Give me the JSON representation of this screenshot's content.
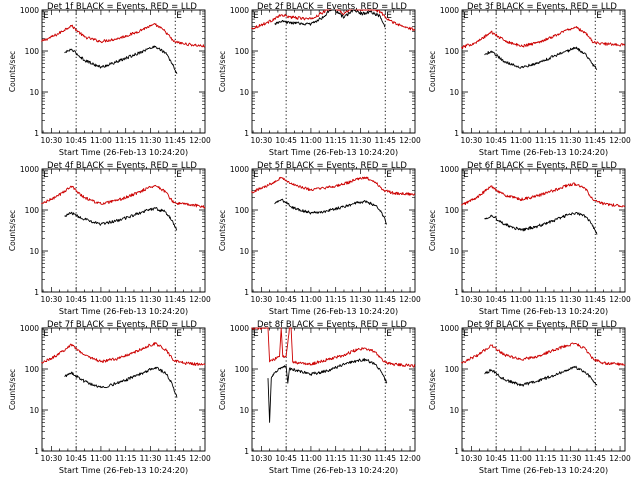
{
  "colors": {
    "events": "#000000",
    "lld": "#cc0000",
    "background": "#ffffff",
    "axes": "#000000"
  },
  "chart_data": [
    {
      "type": "line",
      "title": "Det 1f BLACK = Events, RED = LLD",
      "xlabel": "Start Time (26-Feb-13 10:24:20)",
      "ylabel": "Counts/sec",
      "x_ticks": [
        "10:30",
        "10:45",
        "11:00",
        "11:15",
        "11:30",
        "11:45",
        "12:00"
      ],
      "y_ticks": [
        "1",
        "10",
        "100",
        "1000"
      ],
      "y_scale": "log",
      "ylim": [
        1,
        1000
      ],
      "xlim": [
        "10:24:20",
        "12:03"
      ],
      "markers": [
        {
          "label": "E",
          "x": "10:45"
        },
        {
          "label": "E",
          "x": "11:45"
        }
      ],
      "series": [
        {
          "name": "LLD",
          "color": "#cc0000",
          "x": [
            "10:24",
            "10:34",
            "10:42",
            "10:50",
            "11:00",
            "11:10",
            "11:20",
            "11:28",
            "11:33",
            "11:39",
            "11:44",
            "11:50",
            "12:03"
          ],
          "values": [
            170,
            260,
            420,
            220,
            170,
            200,
            270,
            380,
            440,
            300,
            170,
            150,
            130
          ]
        },
        {
          "name": "Events",
          "color": "#000000",
          "x": [
            "10:38",
            "10:42",
            "10:50",
            "11:00",
            "11:10",
            "11:20",
            "11:28",
            "11:33",
            "11:39",
            "11:43",
            "11:46"
          ],
          "values": [
            90,
            110,
            60,
            40,
            55,
            80,
            110,
            130,
            90,
            50,
            28
          ]
        }
      ]
    },
    {
      "type": "line",
      "title": "Det 2f BLACK = Events, RED = LLD",
      "xlabel": "Start Time (26-Feb-13 10:24:20)",
      "ylabel": "Counts/sec",
      "x_ticks": [
        "10:30",
        "10:45",
        "11:00",
        "11:15",
        "11:30",
        "11:45",
        "12:00"
      ],
      "y_ticks": [
        "1",
        "10",
        "100",
        "1000"
      ],
      "y_scale": "log",
      "ylim": [
        1,
        1000
      ],
      "xlim": [
        "10:24:20",
        "12:03"
      ],
      "markers": [
        {
          "label": "E",
          "x": "10:45"
        },
        {
          "label": "E",
          "x": "11:45"
        }
      ],
      "series": [
        {
          "name": "LLD",
          "color": "#cc0000",
          "x": [
            "10:24",
            "10:34",
            "10:42",
            "10:50",
            "11:00",
            "11:08",
            "11:13",
            "11:20",
            "11:26",
            "11:30",
            "11:36",
            "11:42",
            "11:46",
            "11:55",
            "12:03"
          ],
          "values": [
            350,
            500,
            750,
            650,
            600,
            900,
            1400,
            800,
            1300,
            1000,
            1150,
            900,
            600,
            400,
            330
          ]
        },
        {
          "name": "Events",
          "color": "#000000",
          "x": [
            "10:38",
            "10:42",
            "10:50",
            "11:00",
            "11:08",
            "11:13",
            "11:20",
            "11:26",
            "11:30",
            "11:36",
            "11:42",
            "11:45"
          ],
          "values": [
            450,
            520,
            480,
            450,
            700,
            1100,
            650,
            1050,
            800,
            900,
            700,
            380
          ]
        }
      ]
    },
    {
      "type": "line",
      "title": "Det 3f BLACK = Events, RED = LLD",
      "xlabel": "Start Time (26-Feb-13 10:24:20)",
      "ylabel": "Counts/sec",
      "x_ticks": [
        "10:30",
        "10:45",
        "11:00",
        "11:15",
        "11:30",
        "11:45",
        "12:00"
      ],
      "y_ticks": [
        "1",
        "10",
        "100",
        "1000"
      ],
      "y_scale": "log",
      "ylim": [
        1,
        1000
      ],
      "xlim": [
        "10:24:20",
        "12:03"
      ],
      "markers": [
        {
          "label": "E",
          "x": "10:45"
        },
        {
          "label": "E",
          "x": "11:45"
        }
      ],
      "series": [
        {
          "name": "LLD",
          "color": "#cc0000",
          "x": [
            "10:24",
            "10:34",
            "10:42",
            "10:50",
            "11:00",
            "11:10",
            "11:20",
            "11:28",
            "11:33",
            "11:39",
            "11:44",
            "11:50",
            "12:03"
          ],
          "values": [
            120,
            170,
            290,
            180,
            130,
            160,
            230,
            330,
            380,
            280,
            160,
            150,
            140
          ]
        },
        {
          "name": "Events",
          "color": "#000000",
          "x": [
            "10:38",
            "10:42",
            "10:50",
            "11:00",
            "11:10",
            "11:20",
            "11:28",
            "11:33",
            "11:39",
            "11:43",
            "11:46"
          ],
          "values": [
            80,
            100,
            55,
            40,
            50,
            75,
            100,
            120,
            85,
            50,
            35
          ]
        }
      ]
    },
    {
      "type": "line",
      "title": "Det 4f BLACK = Events, RED = LLD",
      "xlabel": "Start Time (26-Feb-13 10:24:20)",
      "ylabel": "Counts/sec",
      "x_ticks": [
        "10:30",
        "10:45",
        "11:00",
        "11:15",
        "11:30",
        "11:45",
        "12:00"
      ],
      "y_ticks": [
        "1",
        "10",
        "100",
        "1000"
      ],
      "y_scale": "log",
      "ylim": [
        1,
        1000
      ],
      "xlim": [
        "10:24:20",
        "12:03"
      ],
      "markers": [
        {
          "label": "E",
          "x": "10:45"
        },
        {
          "label": "E",
          "x": "11:45"
        }
      ],
      "series": [
        {
          "name": "LLD",
          "color": "#cc0000",
          "x": [
            "10:24",
            "10:34",
            "10:42",
            "10:50",
            "11:00",
            "11:10",
            "11:20",
            "11:28",
            "11:33",
            "11:39",
            "11:44",
            "11:50",
            "12:03"
          ],
          "values": [
            140,
            220,
            380,
            200,
            140,
            170,
            240,
            340,
            400,
            280,
            150,
            140,
            120
          ]
        },
        {
          "name": "Events",
          "color": "#000000",
          "x": [
            "10:38",
            "10:42",
            "10:50",
            "11:00",
            "11:10",
            "11:20",
            "11:28",
            "11:33",
            "11:39",
            "11:43",
            "11:46"
          ],
          "values": [
            70,
            85,
            60,
            45,
            55,
            75,
            100,
            110,
            90,
            55,
            32
          ]
        }
      ]
    },
    {
      "type": "line",
      "title": "Det 5f BLACK = Events, RED = LLD",
      "xlabel": "Start Time (26-Feb-13 10:24:20)",
      "ylabel": "Counts/sec",
      "x_ticks": [
        "10:30",
        "10:45",
        "11:00",
        "11:15",
        "11:30",
        "11:45",
        "12:00"
      ],
      "y_ticks": [
        "1",
        "10",
        "100",
        "1000"
      ],
      "y_scale": "log",
      "ylim": [
        1,
        1000
      ],
      "xlim": [
        "10:24:20",
        "12:03"
      ],
      "markers": [
        {
          "label": "E",
          "x": "10:45"
        },
        {
          "label": "E",
          "x": "11:45"
        }
      ],
      "series": [
        {
          "name": "LLD",
          "color": "#cc0000",
          "x": [
            "10:24",
            "10:34",
            "10:42",
            "10:50",
            "11:00",
            "11:10",
            "11:20",
            "11:28",
            "11:33",
            "11:39",
            "11:44",
            "11:50",
            "12:03"
          ],
          "values": [
            270,
            400,
            620,
            400,
            310,
            350,
            430,
            560,
            620,
            480,
            300,
            260,
            240
          ]
        },
        {
          "name": "Events",
          "color": "#000000",
          "x": [
            "10:38",
            "10:42",
            "10:50",
            "11:00",
            "11:10",
            "11:20",
            "11:28",
            "11:33",
            "11:39",
            "11:43",
            "11:46"
          ],
          "values": [
            140,
            180,
            110,
            85,
            95,
            120,
            150,
            160,
            130,
            85,
            45
          ]
        }
      ]
    },
    {
      "type": "line",
      "title": "Det 6f BLACK = Events, RED = LLD",
      "xlabel": "Start Time (26-Feb-13 10:24:20)",
      "ylabel": "Counts/sec",
      "x_ticks": [
        "10:30",
        "10:45",
        "11:00",
        "11:15",
        "11:30",
        "11:45",
        "12:00"
      ],
      "y_ticks": [
        "1",
        "10",
        "100",
        "1000"
      ],
      "y_scale": "log",
      "ylim": [
        1,
        1000
      ],
      "xlim": [
        "10:24:20",
        "12:03"
      ],
      "markers": [
        {
          "label": "E",
          "x": "10:45"
        },
        {
          "label": "E",
          "x": "11:45"
        }
      ],
      "series": [
        {
          "name": "LLD",
          "color": "#cc0000",
          "x": [
            "10:24",
            "10:34",
            "10:42",
            "10:50",
            "11:00",
            "11:10",
            "11:20",
            "11:28",
            "11:33",
            "11:39",
            "11:44",
            "11:50",
            "12:03"
          ],
          "values": [
            130,
            210,
            380,
            230,
            180,
            220,
            300,
            400,
            430,
            330,
            170,
            140,
            125
          ]
        },
        {
          "name": "Events",
          "color": "#000000",
          "x": [
            "10:38",
            "10:42",
            "10:50",
            "11:00",
            "11:10",
            "11:20",
            "11:28",
            "11:33",
            "11:39",
            "11:43",
            "11:46"
          ],
          "values": [
            60,
            75,
            45,
            32,
            40,
            55,
            75,
            85,
            70,
            45,
            25
          ]
        }
      ]
    },
    {
      "type": "line",
      "title": "Det 7f BLACK = Events, RED = LLD",
      "xlabel": "Start Time (26-Feb-13 10:24:20)",
      "ylabel": "Counts/sec",
      "x_ticks": [
        "10:30",
        "10:45",
        "11:00",
        "11:15",
        "11:30",
        "11:45",
        "12:00"
      ],
      "y_ticks": [
        "1",
        "10",
        "100",
        "1000"
      ],
      "y_scale": "log",
      "ylim": [
        1,
        1000
      ],
      "xlim": [
        "10:24:20",
        "12:03"
      ],
      "markers": [
        {
          "label": "E",
          "x": "10:45"
        },
        {
          "label": "E",
          "x": "11:45"
        }
      ],
      "series": [
        {
          "name": "LLD",
          "color": "#cc0000",
          "x": [
            "10:24",
            "10:34",
            "10:42",
            "10:50",
            "11:00",
            "11:10",
            "11:20",
            "11:28",
            "11:33",
            "11:39",
            "11:44",
            "11:50",
            "12:03"
          ],
          "values": [
            140,
            220,
            400,
            220,
            150,
            180,
            250,
            360,
            420,
            300,
            160,
            140,
            125
          ]
        },
        {
          "name": "Events",
          "color": "#000000",
          "x": [
            "10:38",
            "10:42",
            "10:50",
            "11:00",
            "11:10",
            "11:20",
            "11:28",
            "11:33",
            "11:39",
            "11:43",
            "11:46"
          ],
          "values": [
            65,
            80,
            50,
            35,
            45,
            65,
            90,
            110,
            80,
            45,
            20
          ]
        }
      ]
    },
    {
      "type": "line",
      "title": "Det 8f BLACK = Events, RED = LLD",
      "xlabel": "Start Time (26-Feb-13 10:24:20)",
      "ylabel": "Counts/sec",
      "x_ticks": [
        "10:30",
        "10:45",
        "11:00",
        "11:15",
        "11:30",
        "11:45",
        "12:00"
      ],
      "y_ticks": [
        "1",
        "10",
        "100",
        "1000"
      ],
      "y_scale": "log",
      "ylim": [
        1,
        1000
      ],
      "xlim": [
        "10:24:20",
        "12:03"
      ],
      "markers": [
        {
          "label": "E",
          "x": "10:45"
        },
        {
          "label": "E",
          "x": "11:45"
        }
      ],
      "series": [
        {
          "name": "LLD",
          "color": "#cc0000",
          "x": [
            "10:24",
            "10:34",
            "10:35",
            "10:41",
            "10:42",
            "10:43",
            "10:45",
            "10:47",
            "10:48",
            "10:49",
            "10:53",
            "11:00",
            "11:10",
            "11:20",
            "11:28",
            "11:33",
            "11:39",
            "11:44",
            "11:50",
            "12:03"
          ],
          "values": [
            1000,
            1000,
            150,
            200,
            1000,
            200,
            200,
            1000,
            1000,
            150,
            140,
            130,
            170,
            220,
            300,
            320,
            260,
            150,
            130,
            120
          ]
        },
        {
          "name": "Events",
          "color": "#000000",
          "x": [
            "10:34",
            "10:35",
            "10:36",
            "10:38",
            "10:42",
            "10:45",
            "10:46",
            "10:47",
            "10:53",
            "11:00",
            "11:10",
            "11:20",
            "11:28",
            "11:33",
            "11:39",
            "11:43",
            "11:46"
          ],
          "values": [
            60,
            5,
            60,
            80,
            110,
            120,
            45,
            100,
            90,
            75,
            90,
            130,
            160,
            170,
            130,
            80,
            45
          ]
        }
      ]
    },
    {
      "type": "line",
      "title": "Det 9f BLACK = Events, RED = LLD",
      "xlabel": "Start Time (26-Feb-13 10:24:20)",
      "ylabel": "Counts/sec",
      "x_ticks": [
        "10:30",
        "10:45",
        "11:00",
        "11:15",
        "11:30",
        "11:45",
        "12:00"
      ],
      "y_ticks": [
        "1",
        "10",
        "100",
        "1000"
      ],
      "y_scale": "log",
      "ylim": [
        1,
        1000
      ],
      "xlim": [
        "10:24:20",
        "12:03"
      ],
      "markers": [
        {
          "label": "E",
          "x": "10:45"
        },
        {
          "label": "E",
          "x": "11:45"
        }
      ],
      "series": [
        {
          "name": "LLD",
          "color": "#cc0000",
          "x": [
            "10:24",
            "10:34",
            "10:42",
            "10:50",
            "11:00",
            "11:10",
            "11:20",
            "11:28",
            "11:33",
            "11:39",
            "11:44",
            "11:50",
            "12:03"
          ],
          "values": [
            140,
            220,
            380,
            220,
            170,
            200,
            290,
            380,
            420,
            310,
            170,
            140,
            130
          ]
        },
        {
          "name": "Events",
          "color": "#000000",
          "x": [
            "10:38",
            "10:42",
            "10:50",
            "11:00",
            "11:10",
            "11:20",
            "11:28",
            "11:33",
            "11:39",
            "11:43",
            "11:46"
          ],
          "values": [
            75,
            95,
            55,
            40,
            50,
            70,
            95,
            110,
            85,
            55,
            40
          ]
        }
      ]
    }
  ]
}
